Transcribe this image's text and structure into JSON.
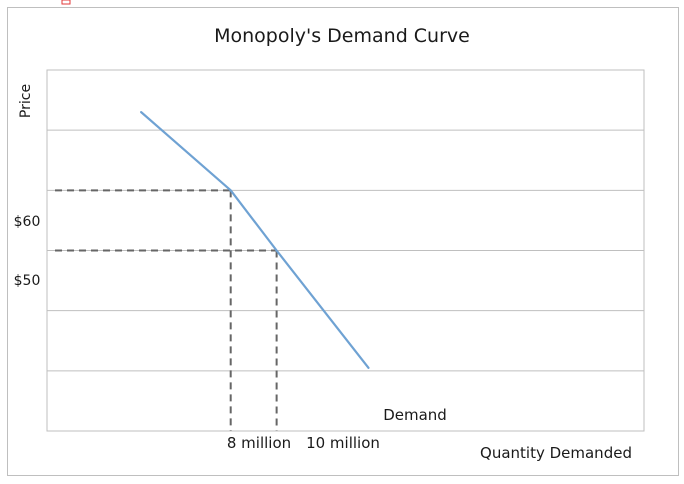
{
  "chart_data": {
    "type": "line",
    "title": "Monopoly's Demand Curve",
    "xlabel": "Quantity Demanded",
    "ylabel": "Price",
    "y_tick_labels": [
      "$60",
      "$50"
    ],
    "x_tick_labels": [
      "8 million",
      "10 million"
    ],
    "series": [
      {
        "name": "Demand",
        "color": "#6fa2d3",
        "points": [
          {
            "x": 4.1,
            "y": 73
          },
          {
            "x": 8,
            "y": 60
          },
          {
            "x": 10,
            "y": 50
          },
          {
            "x": 14,
            "y": 30.5
          }
        ]
      }
    ],
    "reference_points": [
      {
        "x": 8,
        "y": 60,
        "x_label": "8 million",
        "y_label": "$60"
      },
      {
        "x": 10,
        "y": 50,
        "x_label": "10 million",
        "y_label": "$50"
      }
    ],
    "xlim": [
      0,
      26
    ],
    "ylim": [
      20,
      80
    ],
    "grid": "horizontal",
    "legend": "inline-label"
  }
}
